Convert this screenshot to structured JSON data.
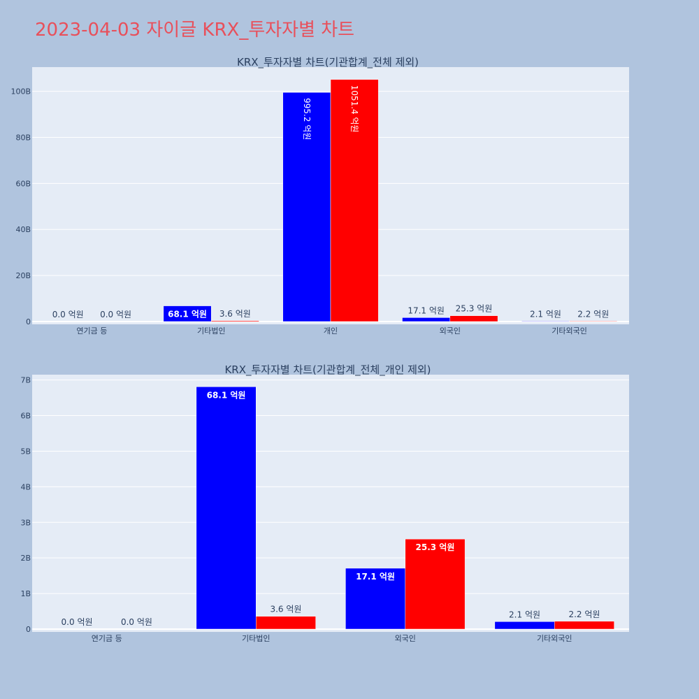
{
  "page": {
    "title": "2023-04-03 자이글 KRX_투자자별 차트"
  },
  "colors": {
    "background": "#b0c4de",
    "plot_bg": "#e5ecf6",
    "title": "#e8505b",
    "buy": "#0000ff",
    "sell": "#ff0000",
    "grid": "#ffffff",
    "text": "#2a3f5f"
  },
  "chart_data": [
    {
      "type": "bar",
      "title": "KRX_투자자별 차트(기관합계_전체 제외)",
      "categories": [
        "연기금 등",
        "기타법인",
        "개인",
        "외국인",
        "기타외국인"
      ],
      "series": [
        {
          "color": "#0000ff",
          "values": [
            0,
            6810000000,
            99520000000,
            1710000000,
            210000000
          ],
          "labels": [
            "0.0 억원",
            "68.1 억원",
            "995.2 억원",
            "17.1 억원",
            "2.1 억원"
          ]
        },
        {
          "color": "#ff0000",
          "values": [
            0,
            360000000,
            105140000000,
            2530000000,
            220000000
          ],
          "labels": [
            "0.0 억원",
            "3.6 억원",
            "1051.4 억원",
            "25.3 억원",
            "2.2 억원"
          ]
        }
      ],
      "yticks": [
        0,
        20000000000,
        40000000000,
        60000000000,
        80000000000,
        100000000000
      ],
      "ytick_labels": [
        "0",
        "20B",
        "40B",
        "60B",
        "80B",
        "100B"
      ],
      "ylim": [
        0,
        110500000000
      ]
    },
    {
      "type": "bar",
      "title": "KRX_투자자별 차트(기관합계_전체_개인 제외)",
      "categories": [
        "연기금 등",
        "기타법인",
        "외국인",
        "기타외국인"
      ],
      "series": [
        {
          "color": "#0000ff",
          "values": [
            0,
            6810000000,
            1710000000,
            210000000
          ],
          "labels": [
            "0.0 억원",
            "68.1 억원",
            "17.1 억원",
            "2.1 억원"
          ]
        },
        {
          "color": "#ff0000",
          "values": [
            0,
            360000000,
            2530000000,
            220000000
          ],
          "labels": [
            "0.0 억원",
            "3.6 억원",
            "25.3 억원",
            "2.2 억원"
          ]
        }
      ],
      "yticks": [
        0,
        1000000000,
        2000000000,
        3000000000,
        4000000000,
        5000000000,
        6000000000,
        7000000000
      ],
      "ytick_labels": [
        "0",
        "1B",
        "2B",
        "3B",
        "4B",
        "5B",
        "6B",
        "7B"
      ],
      "ylim": [
        0,
        7150000000
      ]
    }
  ]
}
